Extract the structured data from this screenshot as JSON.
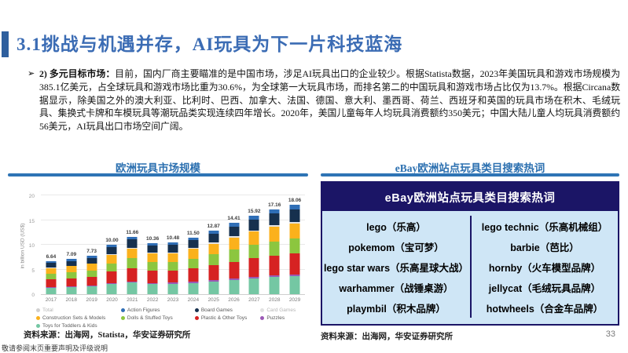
{
  "slide": {
    "title": "3.1挑战与机遇并存，AI玩具为下一片科技蓝海",
    "bullet_marker": "➢",
    "paragraph_lead": "2) 多元目标市场：",
    "paragraph_body": "目前，国内厂商主要瞄准的是中国市场，涉足AI玩具出口的企业较少。根据Statista数据，2023年美国玩具和游戏市场规模为385.1亿美元，占全球玩具和游戏市场比重为30.6%，为全球第一大玩具市场，而排名第二的中国玩具和游戏市场占比仅为13.7%。根据Circana数据显示，除美国之外的澳大利亚、比利时、巴西、加拿大、法国、德国、意大利、墨西哥、荷兰、西班牙和英国的玩具市场在积木、毛绒玩具、集换式卡牌和车模玩具等潮玩品类实现连续四年增长。2020年，美国儿童每年人均玩具消费额约350美元；中国大陆儿童人均玩具消费额约56美元，AI玩具出口市场空间广阔。",
    "source_left": "资料来源：出海网，Statista，华安证券研究所",
    "source_right": "资料来源：出海网，华安证券研究所",
    "page_number": "33",
    "footer_note": "敬请参阅末页重要声明及评级说明"
  },
  "left_panel": {
    "title": "欧洲玩具市场规模"
  },
  "right_panel": {
    "title": "eBay欧洲站点玩具类目搜索热词",
    "table": {
      "header": "eBay欧洲站点玩具类目搜索热词",
      "header_bg": "#1b1566",
      "body_bg": "#cfe6f6",
      "rows": [
        [
          "lego（乐高）",
          "lego technic（乐高机械组）"
        ],
        [
          "pokemom（宝可梦）",
          "barbie（芭比）"
        ],
        [
          "lego star wars（乐高星球大战）",
          "hornby（火车模型品牌）"
        ],
        [
          "warhammer（战锤桌游）",
          "jellycat（毛绒玩具品牌）"
        ],
        [
          "playmbil（积木品牌）",
          "hotwheels（合金车品牌）"
        ]
      ]
    }
  },
  "chart_data": {
    "type": "bar",
    "stacked": true,
    "title": "欧洲玩具市场规模",
    "xlabel": "",
    "ylabel": "in billion USD (US$)",
    "ylim": [
      0,
      20
    ],
    "yticks": [
      0,
      5,
      10,
      15,
      20
    ],
    "grid": true,
    "legend_position": "bottom",
    "categories": [
      "2017",
      "2018",
      "2019",
      "2020",
      "2021",
      "2022",
      "2023",
      "2024",
      "2025",
      "2026",
      "2027",
      "2028",
      "2029"
    ],
    "totals": [
      6.64,
      7.09,
      7.73,
      10.0,
      11.66,
      10.36,
      10.48,
      11.5,
      12.87,
      14.41,
      15.92,
      17.16,
      18.06
    ],
    "totals_labels": [
      "6.64",
      "7.09",
      "7.73",
      "10.00",
      "11.66",
      "10.36",
      "10.48",
      "11.50",
      "12.87",
      "14.41",
      "15.92",
      "17.16",
      "18.06"
    ],
    "series_note": "segment values estimated from bar proportions; stacked bottom-to-top",
    "series": [
      {
        "name": "Toys for Toddlers & Kids",
        "color": "#74c7a3",
        "values": [
          1.33,
          1.42,
          1.55,
          2.0,
          2.33,
          2.07,
          2.1,
          2.3,
          2.57,
          2.88,
          3.18,
          3.43,
          3.61
        ]
      },
      {
        "name": "Puzzles",
        "color": "#9b59b6",
        "values": [
          0.13,
          0.14,
          0.15,
          0.2,
          0.23,
          0.21,
          0.21,
          0.23,
          0.26,
          0.29,
          0.32,
          0.34,
          0.36
        ]
      },
      {
        "name": "Plastic & Other Toys",
        "color": "#d62222",
        "values": [
          1.56,
          1.67,
          1.82,
          2.35,
          2.74,
          2.43,
          2.46,
          2.7,
          3.02,
          3.39,
          3.74,
          4.03,
          4.24
        ]
      },
      {
        "name": "Dolls & Stuffed Toys",
        "color": "#8cc63f",
        "values": [
          1.13,
          1.21,
          1.31,
          1.7,
          1.98,
          1.76,
          1.78,
          1.96,
          2.19,
          2.45,
          2.71,
          2.92,
          3.07
        ]
      },
      {
        "name": "Construction Sets & Models",
        "color": "#fbb11c",
        "values": [
          1.13,
          1.21,
          1.31,
          1.7,
          1.98,
          1.76,
          1.78,
          1.96,
          2.19,
          2.45,
          2.71,
          2.92,
          3.07
        ]
      },
      {
        "name": "Card Games",
        "color": "#e2e2e2",
        "values": [
          0.1,
          0.11,
          0.12,
          0.15,
          0.17,
          0.16,
          0.16,
          0.17,
          0.19,
          0.22,
          0.24,
          0.26,
          0.27
        ]
      },
      {
        "name": "Board Games",
        "color": "#16304e",
        "values": [
          0.93,
          0.99,
          1.08,
          1.4,
          1.63,
          1.45,
          1.47,
          1.61,
          1.8,
          2.02,
          2.23,
          2.4,
          2.53
        ]
      },
      {
        "name": "Action Figures",
        "color": "#2f6eb6",
        "values": [
          0.33,
          0.35,
          0.39,
          0.5,
          0.58,
          0.52,
          0.52,
          0.58,
          0.64,
          0.72,
          0.8,
          0.86,
          0.9
        ]
      }
    ],
    "legend": [
      {
        "name": "Total",
        "color": "#d0d0d0",
        "muted": true
      },
      {
        "name": "Action Figures",
        "color": "#2f6eb6",
        "muted": false
      },
      {
        "name": "Board Games",
        "color": "#16304e",
        "muted": false
      },
      {
        "name": "Card Games",
        "color": "#e2e2e2",
        "muted": true
      },
      {
        "name": "Construction Sets & Models",
        "color": "#fbb11c",
        "muted": false
      },
      {
        "name": "Dolls & Stuffed Toys",
        "color": "#8cc63f",
        "muted": false
      },
      {
        "name": "Plastic & Other Toys",
        "color": "#d62222",
        "muted": false
      },
      {
        "name": "Puzzles",
        "color": "#9b59b6",
        "muted": false
      },
      {
        "name": "Toys for Toddlers & Kids",
        "color": "#74c7a3",
        "muted": false
      }
    ]
  }
}
